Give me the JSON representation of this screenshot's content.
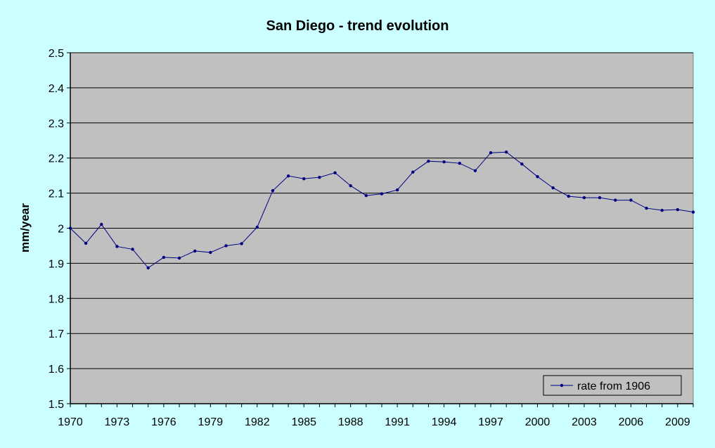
{
  "chart_data": {
    "type": "line",
    "title": "San Diego - trend evolution",
    "xlabel": "",
    "ylabel": "mm/year",
    "xlim": [
      1970,
      2010
    ],
    "ylim": [
      1.5,
      2.5
    ],
    "yticks": [
      "1.5",
      "1.6",
      "1.7",
      "1.8",
      "1.9",
      "2",
      "2.1",
      "2.2",
      "2.3",
      "2.4",
      "2.5"
    ],
    "xticks": [
      "1970",
      "1973",
      "1976",
      "1979",
      "1982",
      "1985",
      "1988",
      "1991",
      "1994",
      "1997",
      "2000",
      "2003",
      "2006",
      "2009"
    ],
    "grid": "horizontal",
    "legend_position": "bottom-right",
    "background_color": "#ccffff",
    "plot_area_color": "#c0c0c0",
    "series": [
      {
        "name": "rate from 1906",
        "color": "#000080",
        "x": [
          1970,
          1971,
          1972,
          1973,
          1974,
          1975,
          1976,
          1977,
          1978,
          1979,
          1980,
          1981,
          1982,
          1983,
          1984,
          1985,
          1986,
          1987,
          1988,
          1989,
          1990,
          1991,
          1992,
          1993,
          1994,
          1995,
          1996,
          1997,
          1998,
          1999,
          2000,
          2001,
          2002,
          2003,
          2004,
          2005,
          2006,
          2007,
          2008,
          2009,
          2010
        ],
        "values": [
          2.0,
          1.957,
          2.011,
          1.948,
          1.94,
          1.887,
          1.917,
          1.915,
          1.935,
          1.931,
          1.95,
          1.956,
          2.003,
          2.107,
          2.149,
          2.141,
          2.145,
          2.158,
          2.121,
          2.093,
          2.098,
          2.109,
          2.16,
          2.191,
          2.189,
          2.185,
          2.164,
          2.215,
          2.217,
          2.183,
          2.147,
          2.115,
          2.091,
          2.087,
          2.087,
          2.08,
          2.08,
          2.057,
          2.051,
          2.053,
          2.046
        ]
      }
    ]
  }
}
